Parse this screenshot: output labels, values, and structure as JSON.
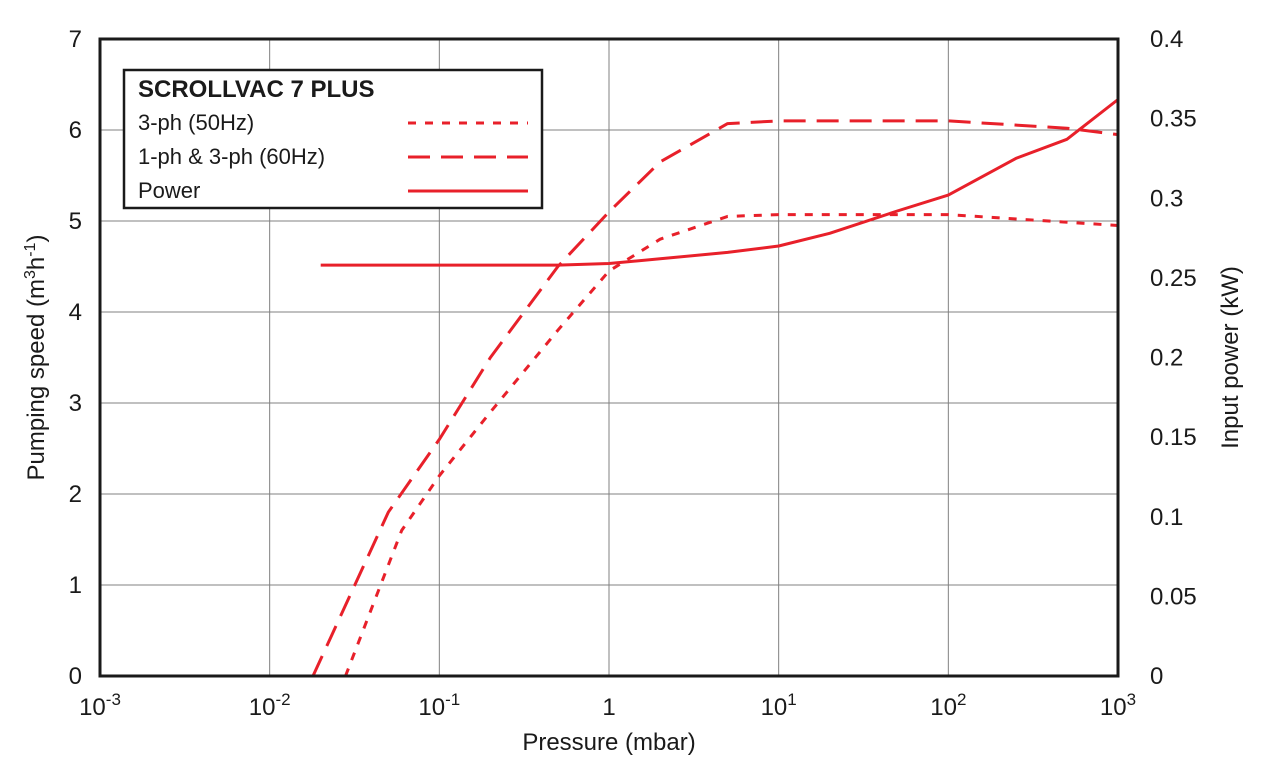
{
  "chart_data": {
    "type": "line",
    "title": "SCROLLVAC 7 PLUS",
    "x_axis": {
      "label": "Pressure (mbar)",
      "scale": "log",
      "range": [
        0.001,
        1000
      ],
      "ticks": [
        {
          "value": 0.001,
          "base": "10",
          "exp": "-3"
        },
        {
          "value": 0.01,
          "base": "10",
          "exp": "-2"
        },
        {
          "value": 0.1,
          "base": "10",
          "exp": "-1"
        },
        {
          "value": 1,
          "base": "1",
          "exp": ""
        },
        {
          "value": 10,
          "base": "10",
          "exp": "1"
        },
        {
          "value": 100,
          "base": "10",
          "exp": "2"
        },
        {
          "value": 1000,
          "base": "10",
          "exp": "3"
        }
      ]
    },
    "y_axis_left": {
      "label_prefix": "Pumping speed (m",
      "label_sup1": "3",
      "label_mid": "h",
      "label_sup2": "-1",
      "label_suffix": ")",
      "range": [
        0,
        7
      ],
      "ticks": [
        "0",
        "1",
        "2",
        "3",
        "4",
        "5",
        "6",
        "7"
      ]
    },
    "y_axis_right": {
      "label": "Input power (kW)",
      "range": [
        0,
        0.4
      ],
      "ticks": [
        "0",
        "0.05",
        "0.1",
        "0.15",
        "0.2",
        "0.25",
        "0.3",
        "0.35",
        "0.4"
      ]
    },
    "grid": true,
    "legend_position": "top-left",
    "series": [
      {
        "name": "3-ph (50Hz)",
        "axis": "left",
        "style": "short-dash",
        "color": "#e8202a",
        "points": [
          [
            0.028,
            0
          ],
          [
            0.06,
            1.6
          ],
          [
            0.1,
            2.2
          ],
          [
            0.2,
            2.9
          ],
          [
            0.5,
            3.8
          ],
          [
            1,
            4.45
          ],
          [
            2,
            4.8
          ],
          [
            5,
            5.05
          ],
          [
            10,
            5.07
          ],
          [
            100,
            5.07
          ],
          [
            1000,
            4.95
          ]
        ]
      },
      {
        "name": "1-ph & 3-ph (60Hz)",
        "axis": "left",
        "style": "long-dash",
        "color": "#e8202a",
        "points": [
          [
            0.018,
            0
          ],
          [
            0.05,
            1.8
          ],
          [
            0.1,
            2.6
          ],
          [
            0.2,
            3.5
          ],
          [
            0.5,
            4.5
          ],
          [
            1,
            5.1
          ],
          [
            2,
            5.65
          ],
          [
            5,
            6.07
          ],
          [
            10,
            6.1
          ],
          [
            100,
            6.1
          ],
          [
            500,
            6.02
          ],
          [
            1000,
            5.95
          ]
        ]
      },
      {
        "name": "Power",
        "axis": "right",
        "style": "solid",
        "color": "#e8202a",
        "points": [
          [
            0.02,
            0.258
          ],
          [
            0.5,
            0.258
          ],
          [
            1,
            0.259
          ],
          [
            2,
            0.262
          ],
          [
            5,
            0.266
          ],
          [
            10,
            0.27
          ],
          [
            20,
            0.278
          ],
          [
            50,
            0.292
          ],
          [
            100,
            0.302
          ],
          [
            250,
            0.325
          ],
          [
            500,
            0.337
          ],
          [
            1000,
            0.362
          ]
        ]
      }
    ]
  }
}
